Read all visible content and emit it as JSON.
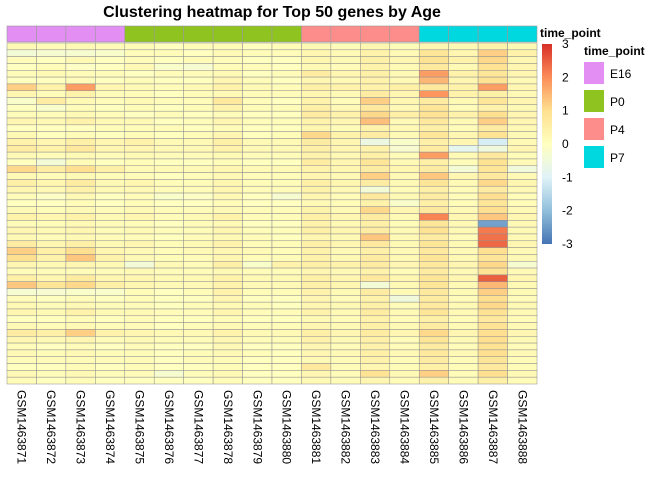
{
  "chart_data": {
    "type": "heatmap",
    "title": "Clustering heatmap for Top 50 genes by Age",
    "columns": [
      "GSM1463871",
      "GSM1463872",
      "GSM1463873",
      "GSM1463874",
      "GSM1463875",
      "GSM1463876",
      "GSM1463877",
      "GSM1463878",
      "GSM1463879",
      "GSM1463880",
      "GSM1463881",
      "GSM1463882",
      "GSM1463883",
      "GSM1463884",
      "GSM1463885",
      "GSM1463886",
      "GSM1463887",
      "GSM1463888"
    ],
    "column_annotation": {
      "name": "time_point",
      "values": [
        "E16",
        "E16",
        "E16",
        "E16",
        "P0",
        "P0",
        "P0",
        "P0",
        "P0",
        "P0",
        "P4",
        "P4",
        "P4",
        "P4",
        "P7",
        "P7",
        "P7",
        "P7"
      ],
      "levels": [
        {
          "label": "E16",
          "color": "#e28ef3"
        },
        {
          "label": "P0",
          "color": "#8fc31f"
        },
        {
          "label": "P4",
          "color": "#fc8d8b"
        },
        {
          "label": "P7",
          "color": "#00d8e0"
        }
      ]
    },
    "color_scale": {
      "min": -3,
      "max": 3,
      "ticks": [
        "3",
        "2",
        "1",
        "0",
        "-1",
        "-2",
        "-3"
      ],
      "colors": [
        "#4575b4",
        "#91bfdb",
        "#e0f3f8",
        "#ffffbf",
        "#fee090",
        "#fc8d59",
        "#d73027"
      ]
    },
    "legend_title": "time_point",
    "n_rows": 50,
    "values": [
      [
        0.2,
        0.1,
        0.2,
        0.1,
        0.1,
        0.0,
        0.1,
        0.1,
        0.0,
        0.1,
        0.2,
        0.1,
        0.3,
        0.1,
        0.3,
        0.2,
        0.4,
        0.2
      ],
      [
        -0.4,
        -0.3,
        -0.3,
        -0.2,
        0.1,
        0.1,
        0.0,
        0.2,
        0.1,
        0.1,
        0.3,
        0.2,
        0.4,
        0.2,
        0.8,
        0.3,
        1.2,
        0.4
      ],
      [
        0.1,
        0.0,
        0.2,
        0.0,
        0.1,
        0.0,
        0.1,
        0.1,
        0.0,
        0.0,
        0.3,
        0.2,
        0.5,
        0.3,
        0.9,
        0.4,
        1.1,
        0.3
      ],
      [
        0.0,
        0.1,
        -0.1,
        0.0,
        0.2,
        -0.2,
        -0.3,
        0.1,
        0.1,
        0.0,
        0.2,
        0.1,
        0.4,
        0.2,
        0.7,
        0.2,
        0.9,
        0.3
      ],
      [
        0.1,
        0.2,
        0.1,
        0.1,
        0.0,
        0.1,
        0.1,
        0.2,
        0.0,
        0.1,
        0.6,
        0.3,
        0.5,
        0.2,
        1.8,
        0.4,
        0.8,
        0.3
      ],
      [
        0.0,
        0.0,
        0.1,
        0.0,
        0.1,
        0.0,
        0.0,
        0.3,
        0.1,
        0.0,
        0.3,
        0.2,
        0.4,
        0.2,
        1.5,
        0.3,
        0.9,
        0.2
      ],
      [
        1.2,
        0.4,
        1.8,
        0.3,
        0.2,
        0.1,
        0.2,
        0.4,
        0.2,
        0.1,
        0.5,
        0.4,
        0.4,
        0.5,
        0.7,
        0.4,
        1.8,
        0.3
      ],
      [
        0.3,
        0.1,
        0.4,
        0.1,
        0.1,
        0.0,
        0.1,
        0.2,
        0.1,
        0.1,
        0.3,
        0.2,
        0.6,
        0.3,
        1.9,
        0.4,
        0.5,
        0.2
      ],
      [
        -0.2,
        0.6,
        0.2,
        0.1,
        0.2,
        0.1,
        0.1,
        0.7,
        0.1,
        0.0,
        0.4,
        0.1,
        1.2,
        0.3,
        0.6,
        0.2,
        0.8,
        0.3
      ],
      [
        0.0,
        -0.2,
        0.1,
        0.0,
        0.1,
        0.0,
        0.1,
        0.4,
        0.1,
        0.1,
        0.5,
        0.2,
        0.7,
        0.2,
        0.8,
        0.1,
        0.4,
        0.2
      ],
      [
        0.1,
        0.1,
        0.2,
        0.1,
        0.0,
        0.1,
        0.0,
        0.1,
        0.0,
        0.0,
        0.6,
        0.4,
        1.1,
        0.5,
        0.9,
        0.4,
        1.0,
        0.3
      ],
      [
        0.3,
        0.2,
        0.4,
        0.2,
        0.2,
        0.0,
        0.1,
        0.3,
        0.1,
        0.1,
        0.4,
        0.3,
        1.4,
        0.2,
        0.7,
        0.2,
        1.2,
        0.3
      ],
      [
        0.0,
        0.0,
        0.0,
        0.1,
        0.1,
        0.1,
        0.0,
        0.1,
        0.0,
        0.0,
        0.3,
        0.1,
        0.4,
        0.2,
        0.5,
        0.1,
        0.6,
        0.2
      ],
      [
        0.2,
        0.0,
        0.1,
        0.0,
        0.1,
        0.0,
        0.1,
        0.3,
        0.0,
        0.1,
        1.1,
        0.4,
        0.6,
        0.2,
        0.8,
        0.3,
        0.9,
        0.2
      ],
      [
        0.4,
        0.3,
        0.5,
        0.3,
        0.4,
        0.2,
        0.2,
        0.5,
        0.2,
        0.2,
        0.6,
        0.3,
        -0.6,
        -0.2,
        0.5,
        0.3,
        -1.1,
        0.2
      ],
      [
        0.6,
        0.4,
        0.7,
        0.3,
        0.3,
        0.2,
        0.2,
        0.4,
        0.2,
        0.2,
        0.5,
        0.3,
        0.4,
        -0.3,
        0.6,
        -0.8,
        -0.5,
        0.3
      ],
      [
        0.2,
        0.1,
        0.2,
        0.1,
        0.2,
        0.1,
        0.1,
        0.2,
        0.1,
        0.1,
        0.4,
        0.2,
        0.5,
        0.1,
        1.8,
        0.2,
        0.7,
        0.1
      ],
      [
        0.0,
        -0.4,
        0.1,
        0.0,
        0.1,
        0.0,
        0.0,
        0.1,
        0.0,
        0.0,
        0.6,
        0.3,
        0.8,
        0.2,
        0.5,
        0.1,
        0.9,
        0.2
      ],
      [
        1.1,
        0.6,
        1.0,
        0.5,
        0.2,
        0.2,
        0.2,
        0.3,
        0.2,
        0.2,
        0.4,
        0.3,
        0.6,
        0.3,
        0.6,
        -0.4,
        0.8,
        -0.5
      ],
      [
        0.2,
        0.1,
        0.2,
        0.1,
        0.1,
        0.0,
        0.1,
        0.2,
        0.1,
        0.1,
        0.3,
        0.2,
        1.2,
        0.2,
        1.3,
        0.3,
        0.7,
        0.2
      ],
      [
        0.5,
        0.3,
        0.6,
        0.2,
        0.3,
        0.1,
        0.1,
        0.3,
        0.1,
        0.1,
        0.5,
        0.3,
        0.6,
        0.2,
        0.8,
        0.2,
        1.1,
        0.3
      ],
      [
        0.3,
        0.2,
        0.4,
        0.2,
        0.2,
        0.1,
        0.1,
        0.3,
        0.1,
        0.1,
        0.4,
        0.2,
        -0.4,
        0.1,
        0.5,
        0.1,
        0.6,
        0.2
      ],
      [
        0.1,
        -0.1,
        0.2,
        0.0,
        0.1,
        -0.2,
        -0.1,
        0.2,
        0.0,
        -0.3,
        0.3,
        0.1,
        0.7,
        0.2,
        0.6,
        0.1,
        1.0,
        0.1
      ],
      [
        0.0,
        0.0,
        0.1,
        0.0,
        0.1,
        0.0,
        0.0,
        0.1,
        0.0,
        0.0,
        0.2,
        0.1,
        0.4,
        -0.2,
        0.5,
        0.1,
        0.8,
        0.1
      ],
      [
        0.2,
        0.1,
        0.2,
        0.1,
        0.2,
        0.1,
        0.1,
        0.2,
        0.1,
        0.1,
        0.4,
        0.2,
        1.1,
        0.3,
        0.7,
        0.2,
        1.0,
        0.2
      ],
      [
        0.4,
        0.3,
        0.4,
        0.2,
        0.3,
        0.1,
        0.2,
        0.4,
        0.1,
        0.1,
        0.5,
        0.3,
        0.6,
        0.2,
        2.1,
        0.3,
        1.3,
        0.3
      ],
      [
        0.1,
        0.1,
        0.2,
        0.1,
        0.1,
        0.0,
        0.1,
        0.2,
        0.0,
        0.0,
        0.4,
        0.2,
        0.5,
        0.1,
        0.8,
        0.2,
        -2.4,
        0.2
      ],
      [
        0.3,
        0.2,
        0.3,
        0.1,
        0.2,
        0.1,
        0.1,
        0.3,
        0.1,
        0.1,
        0.5,
        0.3,
        0.6,
        0.2,
        0.9,
        0.2,
        2.2,
        0.2
      ],
      [
        0.2,
        0.1,
        0.2,
        0.1,
        0.1,
        0.0,
        0.1,
        0.2,
        0.1,
        0.0,
        0.3,
        0.2,
        1.3,
        0.2,
        0.6,
        0.1,
        2.3,
        0.2
      ],
      [
        0.6,
        0.3,
        0.5,
        0.2,
        0.3,
        0.1,
        0.2,
        0.4,
        0.1,
        0.1,
        0.5,
        0.3,
        0.7,
        0.2,
        0.8,
        0.2,
        2.4,
        0.3
      ],
      [
        1.2,
        0.5,
        1.0,
        0.3,
        0.2,
        0.1,
        0.2,
        0.3,
        0.2,
        0.1,
        0.4,
        0.2,
        0.5,
        0.2,
        0.7,
        0.2,
        1.0,
        0.2
      ],
      [
        1.0,
        0.4,
        1.3,
        0.4,
        0.2,
        0.1,
        0.1,
        0.3,
        0.1,
        0.1,
        0.4,
        0.2,
        0.6,
        0.2,
        0.8,
        0.2,
        0.8,
        0.2
      ],
      [
        0.3,
        0.2,
        0.3,
        0.2,
        -0.4,
        0.2,
        0.1,
        0.5,
        -0.2,
        0.4,
        0.5,
        0.4,
        0.6,
        0.3,
        0.7,
        0.3,
        1.1,
        -0.3
      ],
      [
        0.1,
        0.1,
        0.1,
        0.1,
        0.2,
        0.1,
        0.1,
        0.2,
        0.1,
        0.1,
        0.3,
        0.2,
        0.4,
        0.1,
        0.6,
        0.2,
        0.9,
        0.2
      ],
      [
        0.5,
        0.3,
        0.6,
        0.3,
        0.3,
        0.2,
        0.2,
        0.4,
        0.2,
        0.2,
        0.5,
        0.3,
        0.7,
        0.3,
        0.8,
        0.3,
        2.5,
        0.3
      ],
      [
        1.3,
        0.8,
        1.1,
        0.5,
        0.3,
        0.2,
        0.2,
        0.4,
        0.2,
        0.2,
        0.5,
        0.3,
        -0.4,
        0.2,
        0.8,
        0.2,
        1.5,
        0.2
      ],
      [
        -0.3,
        -0.3,
        -0.2,
        -0.2,
        0.1,
        0.0,
        0.1,
        0.4,
        0.1,
        0.1,
        0.4,
        0.2,
        0.6,
        0.2,
        0.7,
        0.2,
        1.2,
        0.2
      ],
      [
        0.1,
        0.0,
        0.1,
        0.0,
        0.1,
        0.0,
        0.0,
        0.3,
        0.0,
        0.0,
        0.3,
        0.1,
        0.4,
        -0.5,
        0.6,
        0.1,
        1.0,
        0.1
      ],
      [
        0.2,
        0.1,
        0.2,
        0.1,
        0.1,
        0.0,
        0.1,
        0.2,
        0.1,
        0.0,
        0.3,
        0.2,
        0.5,
        0.1,
        0.7,
        0.2,
        1.1,
        0.2
      ],
      [
        0.3,
        0.2,
        0.4,
        0.2,
        0.2,
        0.1,
        0.1,
        0.3,
        0.1,
        0.1,
        0.4,
        0.2,
        0.6,
        0.2,
        0.8,
        0.2,
        0.9,
        0.2
      ],
      [
        0.0,
        0.0,
        0.1,
        0.0,
        0.1,
        0.0,
        0.0,
        0.1,
        0.0,
        0.0,
        0.2,
        0.1,
        0.4,
        0.1,
        0.5,
        0.1,
        0.7,
        0.1
      ],
      [
        0.2,
        0.1,
        0.2,
        0.1,
        0.1,
        0.0,
        0.1,
        0.2,
        0.1,
        0.1,
        0.3,
        0.2,
        0.5,
        0.2,
        0.6,
        0.2,
        0.9,
        0.2
      ],
      [
        0.6,
        0.5,
        1.2,
        0.4,
        0.3,
        0.2,
        0.2,
        0.4,
        0.2,
        0.2,
        0.5,
        0.3,
        0.6,
        0.3,
        1.1,
        0.3,
        1.0,
        0.3
      ],
      [
        0.3,
        0.2,
        0.3,
        0.1,
        0.2,
        0.1,
        0.1,
        0.3,
        0.1,
        0.1,
        0.4,
        0.2,
        0.5,
        0.1,
        0.8,
        0.2,
        1.0,
        0.2
      ],
      [
        0.1,
        0.0,
        0.1,
        0.0,
        0.1,
        0.0,
        0.0,
        0.2,
        0.0,
        0.0,
        0.3,
        0.1,
        0.4,
        0.1,
        0.6,
        0.1,
        0.9,
        0.1
      ],
      [
        0.2,
        0.1,
        0.2,
        0.1,
        0.1,
        0.0,
        0.1,
        0.2,
        0.1,
        0.0,
        0.3,
        0.2,
        0.5,
        0.2,
        0.7,
        0.2,
        1.0,
        0.2
      ],
      [
        0.1,
        0.1,
        0.1,
        0.1,
        0.1,
        0.0,
        0.1,
        0.1,
        0.0,
        0.0,
        0.2,
        0.1,
        0.4,
        0.1,
        0.6,
        0.1,
        0.8,
        0.1
      ],
      [
        0.0,
        0.0,
        0.1,
        0.0,
        0.1,
        0.0,
        0.0,
        0.1,
        0.0,
        0.0,
        0.7,
        0.1,
        0.3,
        0.1,
        0.5,
        0.1,
        0.7,
        0.1
      ],
      [
        0.2,
        0.1,
        0.2,
        0.1,
        0.1,
        -0.3,
        0.1,
        0.2,
        0.0,
        0.0,
        0.3,
        0.1,
        0.9,
        0.2,
        1.2,
        0.1,
        1.0,
        0.2
      ],
      [
        0.1,
        0.0,
        0.1,
        0.0,
        0.0,
        0.0,
        0.0,
        0.1,
        0.0,
        0.0,
        0.2,
        0.1,
        0.3,
        0.1,
        0.4,
        0.1,
        0.5,
        0.1
      ]
    ]
  }
}
